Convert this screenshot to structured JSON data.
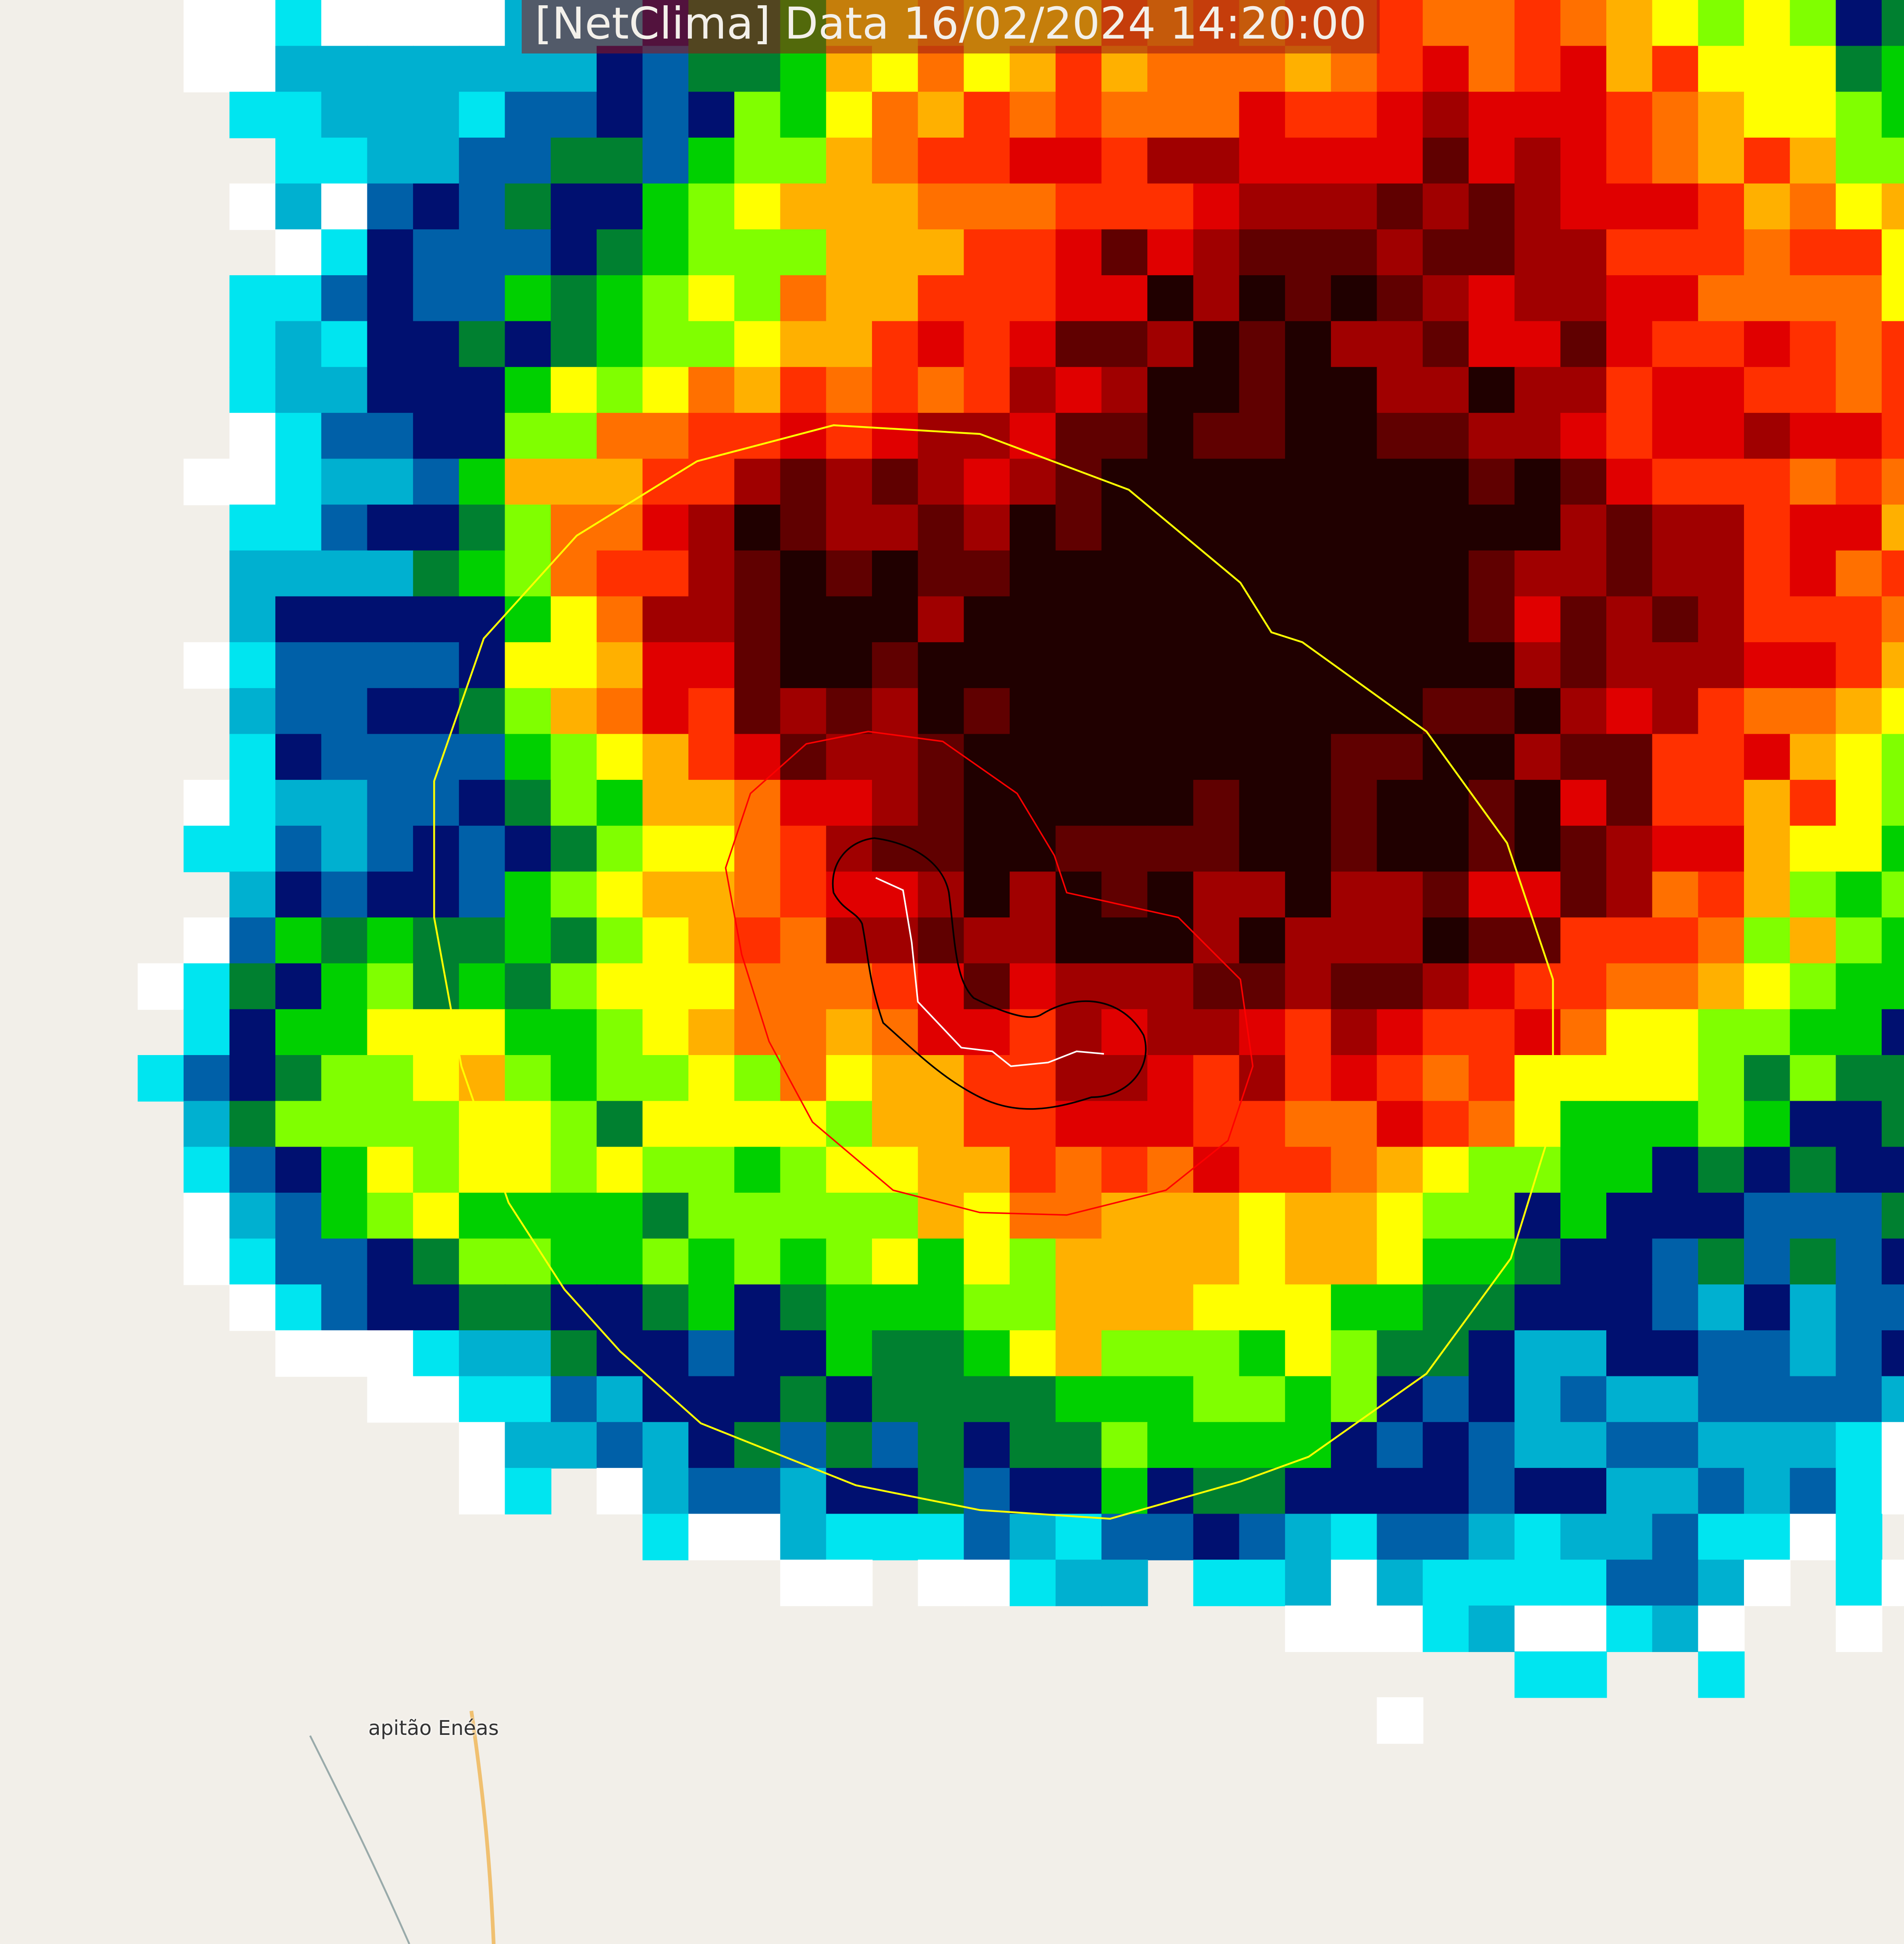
{
  "title": "[NetClima] Data 16/02/2024 14:20:00",
  "map": {
    "place_label": "apitão Enéas",
    "basemap_color": "#f2efe9",
    "overlays": {
      "outer_ring_color": "#ffff00",
      "inner_ring_color": "#ff0000",
      "contour_color": "#000000",
      "track_color": "#ffffff"
    },
    "radar_palette": [
      "#ffffff",
      "#00e5f0",
      "#00b0d0",
      "#0060a8",
      "#001070",
      "#008030",
      "#00d000",
      "#80ff00",
      "#ffff00",
      "#ffb000",
      "#ff7000",
      "#ff3000",
      "#e00000",
      "#a00000",
      "#600000",
      "#200000"
    ]
  }
}
